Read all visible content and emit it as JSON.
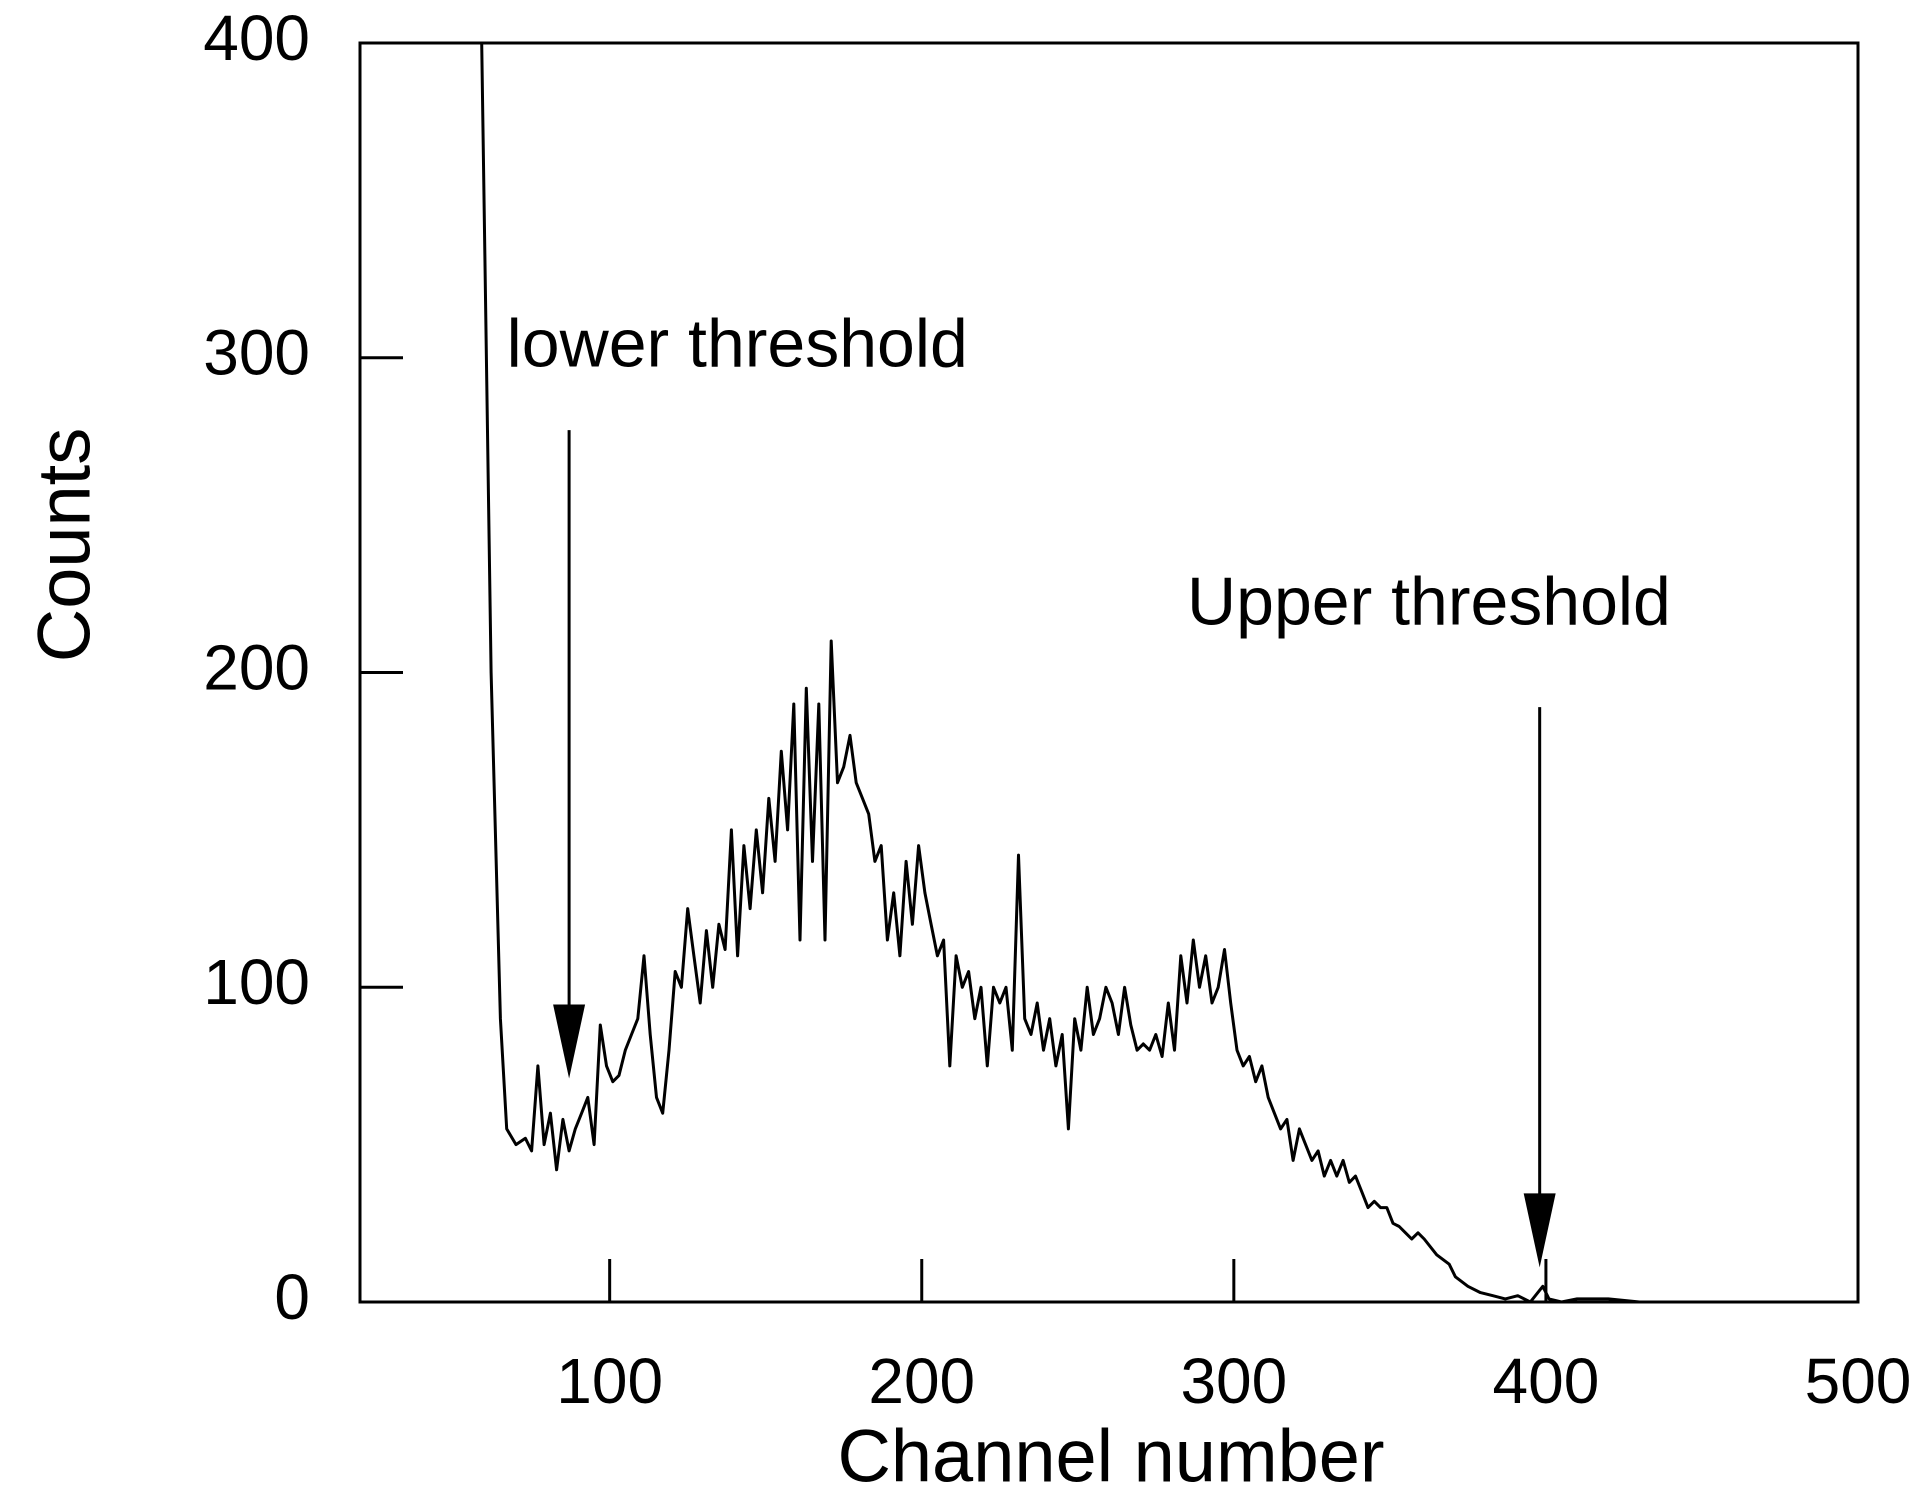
{
  "chart_data": {
    "type": "line",
    "xlabel": "Channel number",
    "ylabel": "Counts",
    "color": "#000000",
    "xlim": [
      20,
      500
    ],
    "ylim": [
      0,
      400
    ],
    "xticks": [
      100,
      200,
      300,
      400,
      500
    ],
    "yticks": [
      0,
      100,
      200,
      300,
      400
    ],
    "x": [
      59,
      62,
      65,
      67,
      70,
      73,
      75,
      77,
      79,
      81,
      83,
      85,
      87,
      89,
      91,
      93,
      95,
      97,
      99,
      101,
      103,
      105,
      107,
      109,
      111,
      113,
      115,
      117,
      119,
      121,
      123,
      125,
      127,
      129,
      131,
      133,
      135,
      137,
      139,
      141,
      143,
      145,
      147,
      149,
      151,
      153,
      155,
      157,
      159,
      161,
      163,
      165,
      167,
      169,
      171,
      173,
      175,
      177,
      179,
      181,
      183,
      185,
      187,
      189,
      191,
      193,
      195,
      197,
      199,
      201,
      203,
      205,
      207,
      209,
      211,
      213,
      215,
      217,
      219,
      221,
      223,
      225,
      227,
      229,
      231,
      233,
      235,
      237,
      239,
      241,
      243,
      245,
      247,
      249,
      251,
      253,
      255,
      257,
      259,
      261,
      263,
      265,
      267,
      269,
      271,
      273,
      275,
      277,
      279,
      281,
      283,
      285,
      287,
      289,
      291,
      293,
      295,
      297,
      299,
      301,
      303,
      305,
      307,
      309,
      311,
      313,
      315,
      317,
      319,
      321,
      323,
      325,
      327,
      329,
      331,
      333,
      335,
      337,
      339,
      341,
      343,
      345,
      347,
      349,
      351,
      353,
      355,
      357,
      359,
      361,
      365,
      369,
      371,
      375,
      379,
      383,
      387,
      391,
      395,
      399,
      401,
      405,
      410,
      420,
      430,
      450
    ],
    "values": [
      400,
      200,
      90,
      55,
      50,
      52,
      48,
      75,
      50,
      60,
      42,
      58,
      48,
      55,
      60,
      65,
      50,
      88,
      75,
      70,
      72,
      80,
      85,
      90,
      110,
      85,
      65,
      60,
      80,
      105,
      100,
      125,
      110,
      95,
      118,
      100,
      120,
      112,
      150,
      110,
      145,
      125,
      150,
      130,
      160,
      140,
      175,
      150,
      190,
      115,
      195,
      140,
      190,
      115,
      210,
      165,
      170,
      180,
      165,
      160,
      155,
      140,
      145,
      115,
      130,
      110,
      140,
      120,
      145,
      130,
      120,
      110,
      115,
      75,
      110,
      100,
      105,
      90,
      100,
      75,
      100,
      95,
      100,
      80,
      142,
      90,
      85,
      95,
      80,
      90,
      75,
      85,
      55,
      90,
      80,
      100,
      85,
      90,
      100,
      95,
      85,
      100,
      88,
      80,
      82,
      80,
      85,
      78,
      95,
      80,
      110,
      95,
      115,
      100,
      110,
      95,
      100,
      112,
      95,
      80,
      75,
      78,
      70,
      75,
      65,
      60,
      55,
      58,
      45,
      55,
      50,
      45,
      48,
      40,
      45,
      40,
      45,
      38,
      40,
      35,
      30,
      32,
      30,
      30,
      25,
      24,
      22,
      20,
      22,
      20,
      15,
      12,
      8,
      5,
      3,
      2,
      1,
      2,
      0,
      5,
      1,
      0,
      1,
      1,
      0,
      0
    ],
    "annotations": [
      {
        "text": "lower threshold",
        "text_x": 67,
        "text_y": 303,
        "x": 87,
        "y": 71,
        "arrow_y0": 277
      },
      {
        "text": "Upper threshold",
        "text_x": 285,
        "text_y": 221,
        "x": 398,
        "y": 11,
        "arrow_y0": 189
      }
    ]
  }
}
